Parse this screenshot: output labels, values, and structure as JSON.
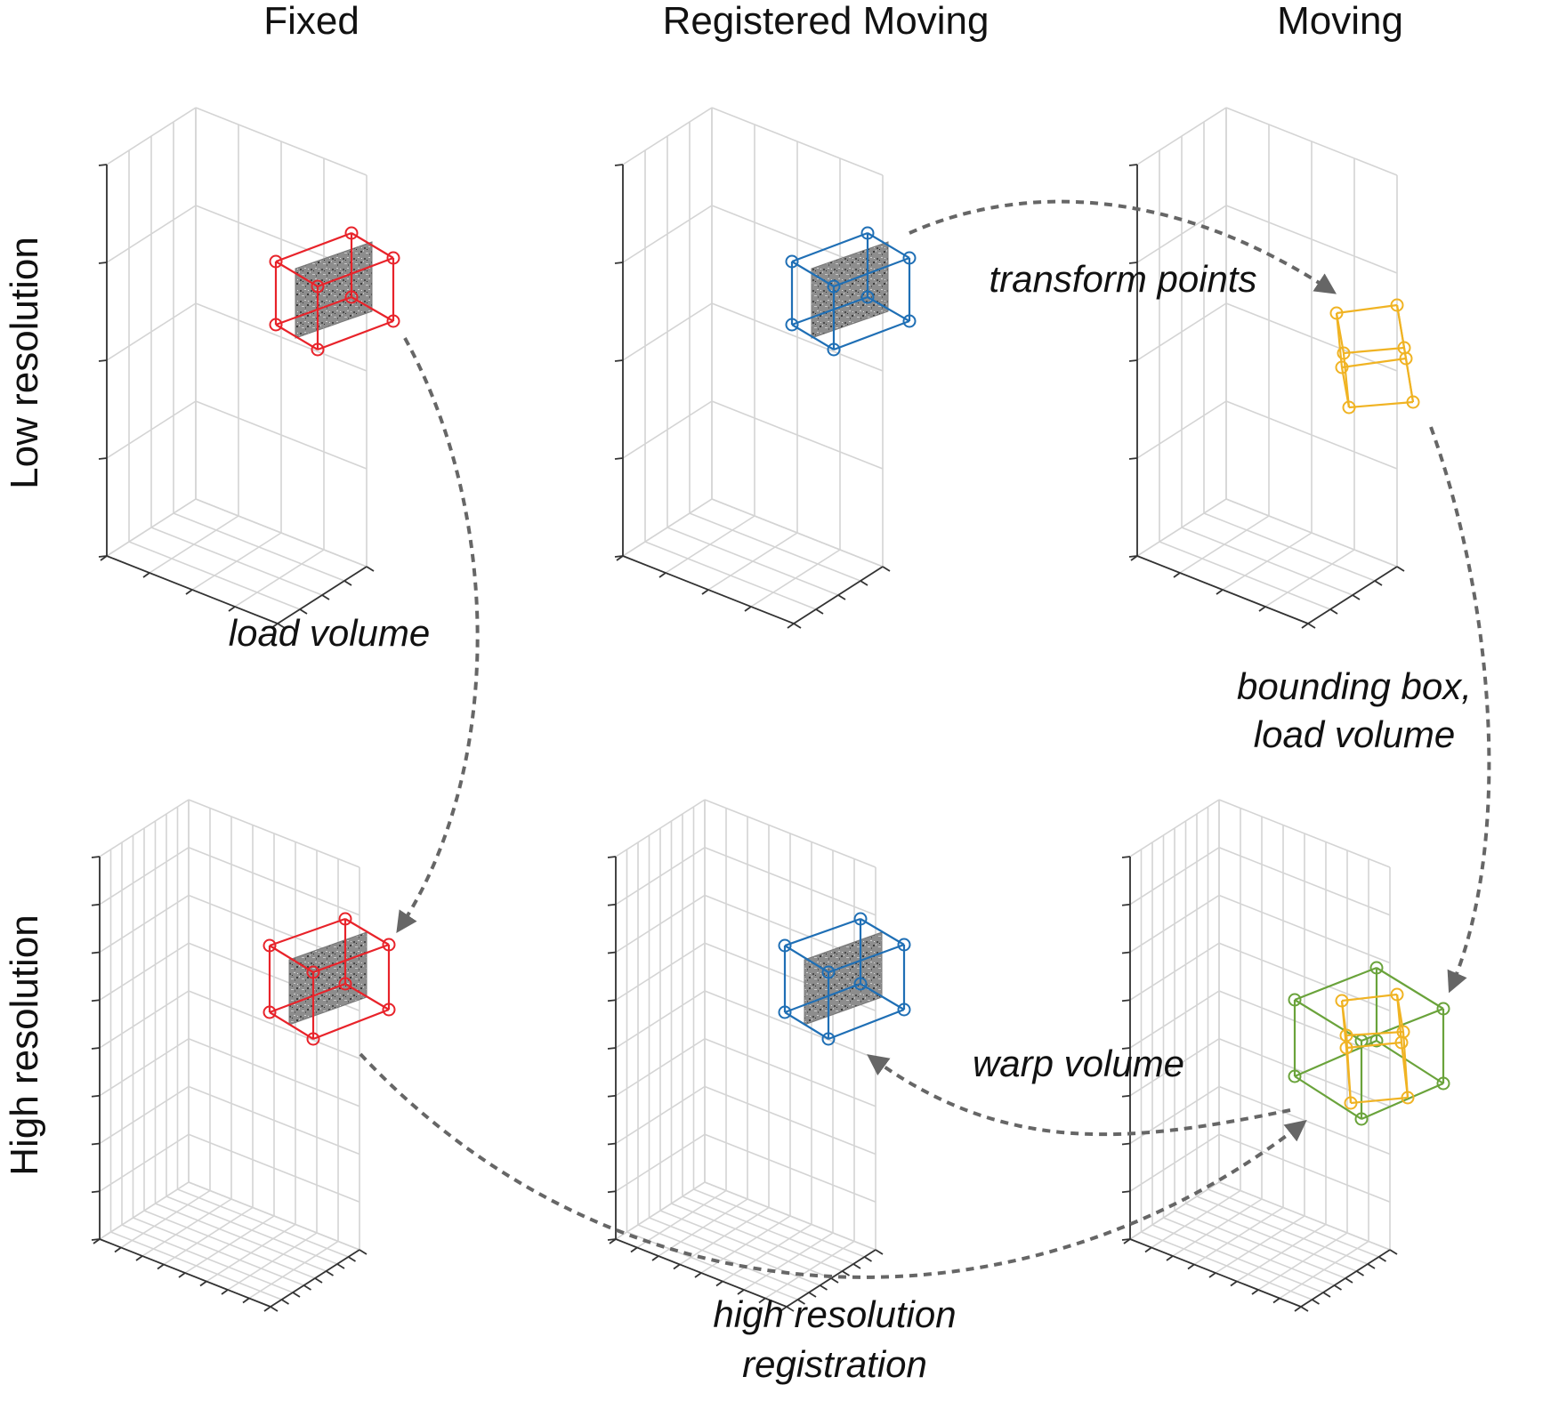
{
  "columns": {
    "fixed": "Fixed",
    "registered": "Registered Moving",
    "moving": "Moving"
  },
  "rows": {
    "low": "Low resolution",
    "high": "High resolution"
  },
  "steps": {
    "load_volume": "load volume",
    "transform_points": "transform points",
    "bounding_box": "bounding box,",
    "load_volume_2": "load volume",
    "warp_volume": "warp volume",
    "high_res_1": "high resolution",
    "high_res_2": "registration"
  },
  "colors": {
    "fixed": "#e8232a",
    "registered": "#1f6fb5",
    "moving_points": "#f0b323",
    "bounding_box": "#6aa33b",
    "arrow": "#666666"
  }
}
